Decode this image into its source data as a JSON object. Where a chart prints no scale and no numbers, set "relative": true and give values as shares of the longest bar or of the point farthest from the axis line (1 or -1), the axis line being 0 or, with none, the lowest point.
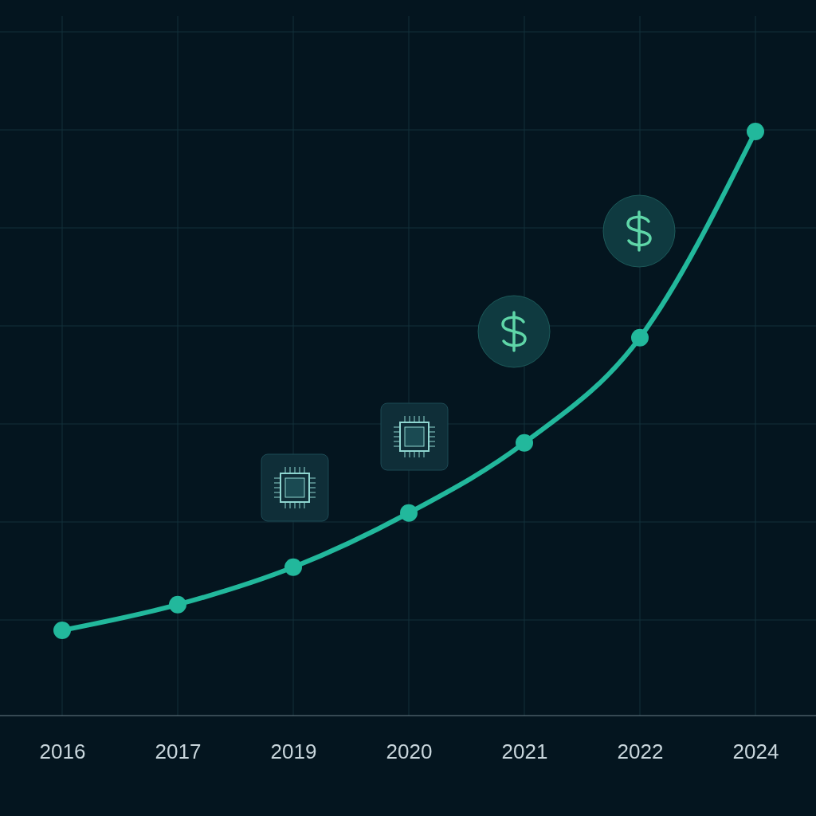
{
  "chart_data": {
    "type": "line",
    "relative": true,
    "categories": [
      "2016",
      "2017",
      "2019",
      "2020",
      "2021",
      "2022",
      "2024"
    ],
    "series": [
      {
        "color": "#22b89c",
        "values": [
          0.146,
          0.19,
          0.254,
          0.347,
          0.467,
          0.647,
          1
        ]
      }
    ],
    "marker": "circle",
    "line_style": "solid",
    "grid": true
  }
}
